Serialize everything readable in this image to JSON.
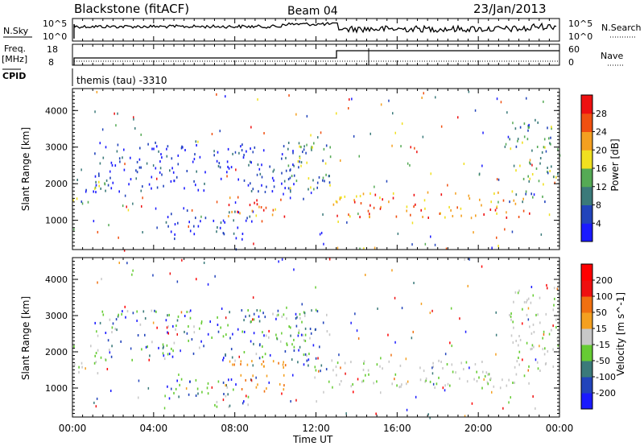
{
  "header": {
    "station": "Blackstone (fitACF)",
    "beam": "Beam 04",
    "date": "23/Jan/2013"
  },
  "top_panels": {
    "nsky_label": "N.Sky",
    "nsky_ticks": [
      "10^5",
      "10^0"
    ],
    "nsearch_label": "N.Search",
    "nsearch_ticks": [
      "10^5",
      "10^0"
    ],
    "freq_label": "Freq.",
    "freq_unit": "[MHz]",
    "freq_ticks": [
      "18",
      "8"
    ],
    "nave_label": "Nave",
    "nave_ticks": [
      "60",
      "0"
    ],
    "cpid_label": "CPID",
    "cpid_value": "themis (tau) -3310"
  },
  "x_axis": {
    "ticks": [
      "00:00",
      "04:00",
      "08:00",
      "12:00",
      "16:00",
      "20:00",
      "00:00"
    ],
    "label": "Time UT"
  },
  "chart_data": [
    {
      "type": "heatmap",
      "name": "power",
      "ylabel": "Slant Range [km]",
      "ylim": [
        200,
        4600
      ],
      "yticks": [
        "1000",
        "2000",
        "3000",
        "4000"
      ],
      "xlim_hours": [
        0,
        24
      ],
      "colorbar": {
        "label": "Power [dB]",
        "ticks": [
          "4",
          "8",
          "12",
          "16",
          "20",
          "24",
          "28"
        ],
        "range": [
          0,
          32
        ],
        "colors": [
          "#1a1aff",
          "#2244bb",
          "#3b7a7a",
          "#55aa55",
          "#f0e020",
          "#f4a020",
          "#f05010",
          "#ee1010"
        ]
      },
      "features": [
        {
          "hours": [
            0.0,
            1.6
          ],
          "range_km": [
            1500,
            2300
          ],
          "level": "medium"
        },
        {
          "hours": [
            1.0,
            11.5
          ],
          "range_km": [
            1800,
            3200
          ],
          "level": "low"
        },
        {
          "hours": [
            4.5,
            9.0
          ],
          "range_km": [
            500,
            1300
          ],
          "level": "low"
        },
        {
          "hours": [
            7.5,
            10.5
          ],
          "range_km": [
            1000,
            1700
          ],
          "level": "high"
        },
        {
          "hours": [
            10.5,
            12.8
          ],
          "range_km": [
            1500,
            3200
          ],
          "level": "medium"
        },
        {
          "hours": [
            12.8,
            22.5
          ],
          "range_km": [
            1100,
            1800
          ],
          "level": "high"
        },
        {
          "hours": [
            21.5,
            24.0
          ],
          "range_km": [
            1500,
            3800
          ],
          "level": "medium"
        }
      ]
    },
    {
      "type": "heatmap",
      "name": "velocity",
      "ylabel": "Slant Range [km]",
      "ylim": [
        200,
        4600
      ],
      "yticks": [
        "1000",
        "2000",
        "3000",
        "4000"
      ],
      "xlim_hours": [
        0,
        24
      ],
      "colorbar": {
        "label": "Velocity [m s^-1]",
        "ticks": [
          "200",
          "100",
          "50",
          "15",
          "-15",
          "-50",
          "-100",
          "-200"
        ],
        "colors": [
          "#1a1aff",
          "#2244bb",
          "#3b7a7a",
          "#66cc33",
          "#c8c8c8",
          "#f4a020",
          "#f07010",
          "#ee1010",
          "#ff0000"
        ]
      },
      "features": [
        {
          "hours": [
            0.0,
            1.6
          ],
          "range_km": [
            1400,
            2200
          ],
          "level": "grey"
        },
        {
          "hours": [
            1.0,
            11.5
          ],
          "range_km": [
            1800,
            3200
          ],
          "level": "green"
        },
        {
          "hours": [
            4.5,
            9.0
          ],
          "range_km": [
            500,
            1300
          ],
          "level": "green"
        },
        {
          "hours": [
            7.5,
            10.5
          ],
          "range_km": [
            900,
            1800
          ],
          "level": "orange"
        },
        {
          "hours": [
            10.5,
            12.8
          ],
          "range_km": [
            1500,
            3200
          ],
          "level": "green"
        },
        {
          "hours": [
            12.8,
            22.5
          ],
          "range_km": [
            1000,
            1800
          ],
          "level": "grey"
        },
        {
          "hours": [
            21.5,
            24.0
          ],
          "range_km": [
            1500,
            3800
          ],
          "level": "grey"
        }
      ]
    }
  ]
}
